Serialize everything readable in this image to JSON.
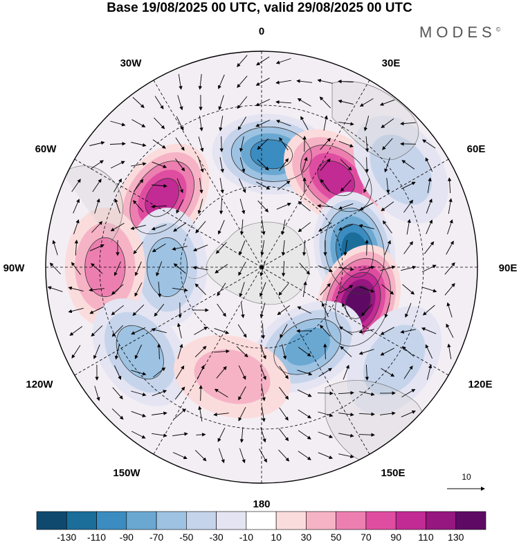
{
  "title": "Base 19/08/2025 00 UTC, valid 29/08/2025 00 UTC",
  "brand": "MODES",
  "brand_mark": "©",
  "longitude_labels": {
    "lon_0": "0",
    "lon_30e": "30E",
    "lon_60e": "60E",
    "lon_90e": "90E",
    "lon_120e": "120E",
    "lon_150e": "150E",
    "lon_180": "180",
    "lon_150w": "150W",
    "lon_120w": "120W",
    "lon_90w": "90W",
    "lon_60w": "60W",
    "lon_30w": "30W"
  },
  "vector_scale_label": "10",
  "colorbar": {
    "colors": [
      "#0f4a6e",
      "#1b6d9a",
      "#3b8cc0",
      "#6aa8d2",
      "#9ec2e2",
      "#c5d4eb",
      "#e4e4f2",
      "#ffffff",
      "#fbdcdc",
      "#f6b3c6",
      "#ed7fb0",
      "#df4da1",
      "#c22b93",
      "#95177f",
      "#5e0a64"
    ],
    "labels": [
      "-130",
      "-110",
      "-90",
      "-70",
      "-50",
      "-30",
      "-10",
      "10",
      "30",
      "50",
      "70",
      "90",
      "110",
      "130"
    ]
  },
  "anomaly_centers": [
    {
      "name": "neg-0E",
      "lon": 5,
      "lat": -48,
      "value": -110
    },
    {
      "name": "pos-30E",
      "lon": 40,
      "lat": -47,
      "value": 110
    },
    {
      "name": "neg-70E",
      "lon": 80,
      "lat": -55,
      "value": -130
    },
    {
      "name": "pos-100E",
      "lon": 110,
      "lat": -52,
      "value": 150
    },
    {
      "name": "neg-150E",
      "lon": 150,
      "lat": -56,
      "value": -90
    },
    {
      "name": "pos-60W",
      "lon": -55,
      "lat": -45,
      "value": 110
    },
    {
      "name": "neg-80W",
      "lon": -90,
      "lat": -55,
      "value": -70
    },
    {
      "name": "pos-90W",
      "lon": -90,
      "lat": -32,
      "value": 70
    },
    {
      "name": "neg-120W",
      "lon": -125,
      "lat": -35,
      "value": -60
    },
    {
      "name": "pos-160W",
      "lon": -165,
      "lat": -48,
      "value": 50
    },
    {
      "name": "neg-30E",
      "lon": 55,
      "lat": -27,
      "value": -50
    },
    {
      "name": "neg-120E",
      "lon": 125,
      "lat": -30,
      "value": -50
    }
  ]
}
